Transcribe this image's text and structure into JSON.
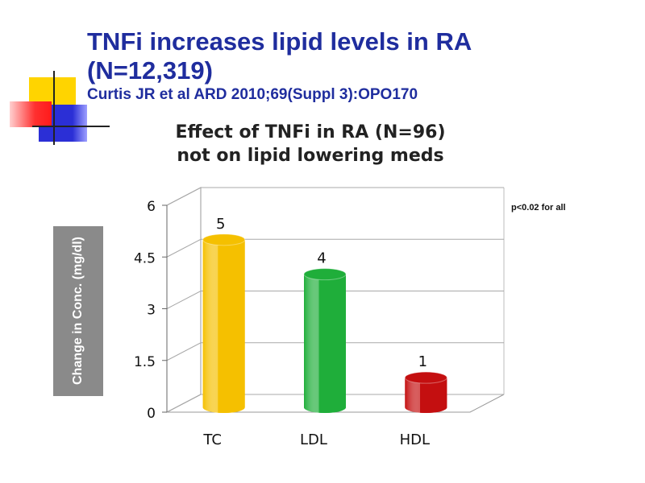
{
  "slide": {
    "title_line1": "TNFi increases lipid levels in RA",
    "title_line2": "(N=12,319)",
    "citation": "Curtis JR et al ARD 2010;69(Suppl 3):OPO170",
    "p_note": "p<0.02 for all",
    "colors": {
      "title": "#1f2d9e",
      "deco_yellow": "#ffd400",
      "deco_red": "#ff2a2a",
      "deco_blue": "#2b2fd6"
    }
  },
  "chart_data": {
    "type": "bar",
    "title_lines": [
      "Effect of TNFi in RA (N=96)",
      "not on lipid lowering meds"
    ],
    "ylabel": "Change in Conc. (mg/dl)",
    "xlabel": "",
    "categories": [
      "TC",
      "LDL",
      "HDL"
    ],
    "values": [
      5,
      4,
      1
    ],
    "data_labels": [
      "5",
      "4",
      "1"
    ],
    "ylim": [
      0,
      6
    ],
    "yticks": [
      0,
      1.5,
      3,
      4.5,
      6
    ],
    "ytick_labels": [
      "0",
      "1.5",
      "3",
      "4.5",
      "6"
    ],
    "bar_colors": [
      "#f5c000",
      "#1fae3a",
      "#c40f10"
    ],
    "grid": true,
    "style": "3d-cylinder"
  }
}
